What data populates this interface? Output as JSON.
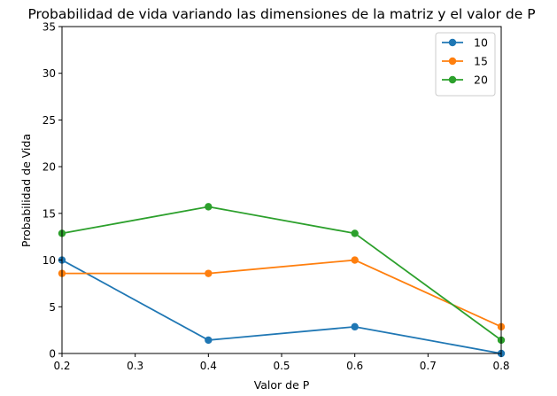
{
  "chart_data": {
    "type": "line",
    "title": "Probabilidad de vida variando las dimensiones de la matriz y el valor de P",
    "xlabel": "Valor de P",
    "ylabel": "Probabilidad de Vida",
    "xlim": [
      0.2,
      0.8
    ],
    "ylim": [
      0,
      35
    ],
    "xticks": [
      0.2,
      0.3,
      0.4,
      0.5,
      0.6,
      0.7,
      0.8
    ],
    "yticks": [
      0,
      5,
      10,
      15,
      20,
      25,
      30,
      35
    ],
    "grid": false,
    "legend_position": "top-right",
    "x": [
      0.2,
      0.4,
      0.6,
      0.8
    ],
    "series": [
      {
        "name": "10",
        "color": "#1f77b4",
        "values": [
          10.0,
          1.43,
          2.86,
          0.0
        ]
      },
      {
        "name": "15",
        "color": "#ff7f0e",
        "values": [
          8.57,
          8.57,
          10.0,
          2.86
        ]
      },
      {
        "name": "20",
        "color": "#2ca02c",
        "values": [
          12.86,
          15.71,
          12.86,
          1.43
        ]
      }
    ]
  }
}
